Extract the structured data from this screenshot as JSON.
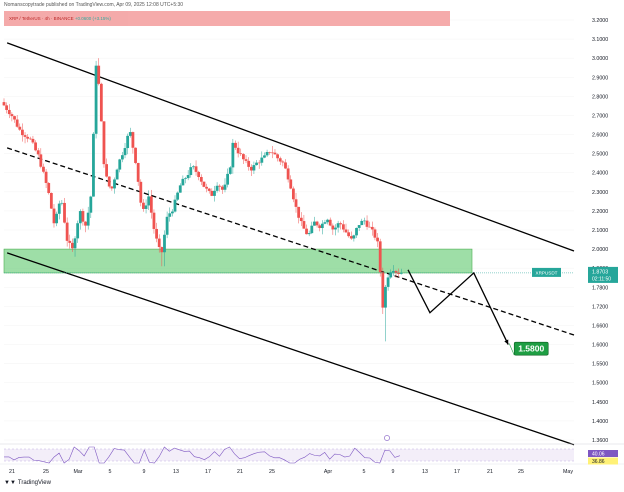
{
  "header": {
    "published_line": "Nomanscopytrade published on TradingView.com, Apr 09, 2025 12:08 UTC+5:30"
  },
  "legend": {
    "symbol_line": "XRP / TetherUS · 4h · BINANCE",
    "change": "+0.0600 (+3.15%)"
  },
  "footer": {
    "brand": "TradingView"
  },
  "colors": {
    "up": "#26a69a",
    "down": "#ef5350",
    "zone": "#7dd38a",
    "label_green": "#1e9e43"
  },
  "chart_data": {
    "type": "candlestick",
    "title": "XRP / TetherUS · 4h · BINANCE",
    "symbol": "XRPUSDT",
    "current_price": "1.8703",
    "countdown": "02:11:50",
    "target_label": "1.5800",
    "ylim": [
      1.3,
      3.25
    ],
    "y_ticks": [
      "3.2000",
      "3.1000",
      "3.0000",
      "2.9000",
      "2.8000",
      "2.7000",
      "2.6000",
      "2.5000",
      "2.4000",
      "2.3000",
      "2.2000",
      "2.1000",
      "2.0000",
      "1.9000",
      "1.7800",
      "1.7200",
      "1.6600",
      "1.6000",
      "1.5500",
      "1.5000",
      "1.4500",
      "1.4000",
      "1.3600"
    ],
    "x_ticks": [
      "21",
      "25",
      "Mar",
      "5",
      "9",
      "13",
      "17",
      "21",
      "25",
      "Apr",
      "5",
      "9",
      "13",
      "17",
      "21",
      "25",
      "May"
    ],
    "demand_zone": [
      1.87,
      2.0
    ],
    "channel_lines": [
      {
        "style": "solid",
        "from": [
          0.5,
          3.08
        ],
        "to": [
          91,
          1.99
        ]
      },
      {
        "style": "dashed",
        "from": [
          0.5,
          2.53
        ],
        "to": [
          91,
          1.63
        ]
      },
      {
        "style": "solid",
        "from": [
          0.5,
          1.98
        ],
        "to": [
          91,
          1.35
        ]
      }
    ],
    "projection_path": [
      [
        64.5,
        1.89
      ],
      [
        68,
        1.7
      ],
      [
        75,
        1.87
      ],
      [
        80.5,
        1.6
      ]
    ],
    "oscillator": {
      "name": "RSI",
      "values": [
        "40.06",
        "36.86"
      ]
    },
    "price_path": [
      [
        0,
        2.77
      ],
      [
        1.5,
        2.71
      ],
      [
        3,
        2.62
      ],
      [
        4.5,
        2.58
      ],
      [
        6,
        2.48
      ],
      [
        7.5,
        2.3
      ],
      [
        8.5,
        2.12
      ],
      [
        9.5,
        2.28
      ],
      [
        10.5,
        2.05
      ],
      [
        11.3,
        1.99
      ],
      [
        12.5,
        2.2
      ],
      [
        13.5,
        2.12
      ],
      [
        14.5,
        2.32
      ],
      [
        15,
        3.0
      ],
      [
        15.5,
        2.88
      ],
      [
        16.5,
        2.4
      ],
      [
        17.5,
        2.3
      ],
      [
        18.5,
        2.43
      ],
      [
        19.5,
        2.52
      ],
      [
        20.5,
        2.62
      ],
      [
        21.5,
        2.45
      ],
      [
        22.5,
        2.18
      ],
      [
        23.5,
        2.28
      ],
      [
        24.5,
        2.08
      ],
      [
        25.5,
        1.96
      ],
      [
        26.5,
        2.17
      ],
      [
        27.5,
        2.22
      ],
      [
        28.5,
        2.33
      ],
      [
        29.5,
        2.38
      ],
      [
        30.5,
        2.43
      ],
      [
        31.5,
        2.39
      ],
      [
        32.5,
        2.32
      ],
      [
        33.5,
        2.28
      ],
      [
        34.5,
        2.35
      ],
      [
        35.5,
        2.3
      ],
      [
        36.5,
        2.43
      ],
      [
        37,
        2.56
      ],
      [
        38,
        2.5
      ],
      [
        39,
        2.45
      ],
      [
        40,
        2.42
      ],
      [
        41,
        2.46
      ],
      [
        42,
        2.48
      ],
      [
        43,
        2.52
      ],
      [
        44,
        2.48
      ],
      [
        45,
        2.45
      ],
      [
        46,
        2.36
      ],
      [
        47,
        2.22
      ],
      [
        48,
        2.12
      ],
      [
        49,
        2.07
      ],
      [
        50,
        2.14
      ],
      [
        51,
        2.12
      ],
      [
        52,
        2.17
      ],
      [
        53,
        2.1
      ],
      [
        54,
        2.14
      ],
      [
        55,
        2.09
      ],
      [
        56,
        2.04
      ],
      [
        57,
        2.13
      ],
      [
        58,
        2.15
      ],
      [
        59,
        2.1
      ],
      [
        60,
        2.05
      ],
      [
        60.5,
        1.87
      ],
      [
        61,
        1.69
      ],
      [
        61.5,
        1.83
      ],
      [
        62,
        1.88
      ],
      [
        62.5,
        1.9
      ],
      [
        63,
        1.88
      ],
      [
        63.5,
        1.87
      ]
    ]
  }
}
